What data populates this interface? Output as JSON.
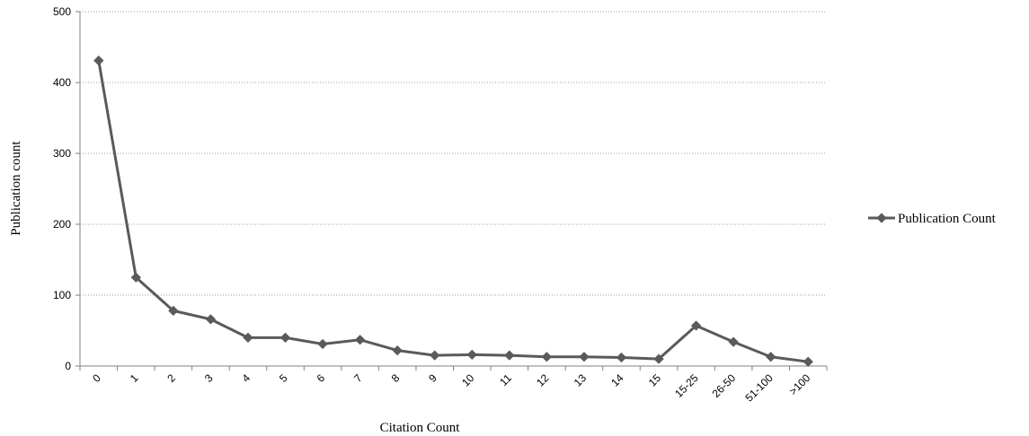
{
  "chart_data": {
    "type": "line",
    "title": "",
    "xlabel": "Citation Count",
    "ylabel": "Publication count",
    "categories": [
      "0",
      "1",
      "2",
      "3",
      "4",
      "5",
      "6",
      "7",
      "8",
      "9",
      "10",
      "11",
      "12",
      "13",
      "14",
      "15",
      "15-25",
      "26-50",
      "51-100",
      ">100"
    ],
    "series": [
      {
        "name": "Publication Count",
        "values": [
          431,
          125,
          78,
          66,
          40,
          40,
          31,
          37,
          22,
          15,
          16,
          15,
          13,
          13,
          12,
          10,
          57,
          34,
          13,
          6
        ],
        "color": "#5a5a5a"
      }
    ],
    "ylim": [
      0,
      500
    ],
    "yticks": [
      "0",
      "100",
      "200",
      "300",
      "400",
      "500"
    ],
    "grid": true,
    "legend_position": "right"
  }
}
